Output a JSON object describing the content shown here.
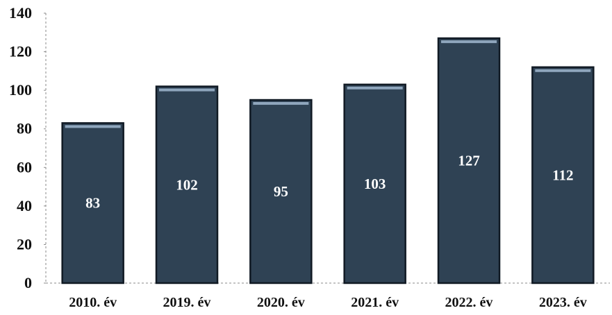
{
  "chart_data": {
    "type": "bar",
    "categories": [
      "2010. év",
      "2019. év",
      "2020. év",
      "2021. év",
      "2022. év",
      "2023. év"
    ],
    "values": [
      83,
      102,
      95,
      103,
      127,
      112
    ],
    "title": "",
    "xlabel": "",
    "ylabel": "",
    "ylim": [
      0,
      140
    ],
    "yticks": [
      0,
      20,
      40,
      60,
      80,
      100,
      120,
      140
    ],
    "grid": false,
    "legend": "none",
    "bar_color": "#2f4254",
    "bar_edge_color": "#111a24",
    "bar_highlight_color": "#8fa6bd"
  }
}
